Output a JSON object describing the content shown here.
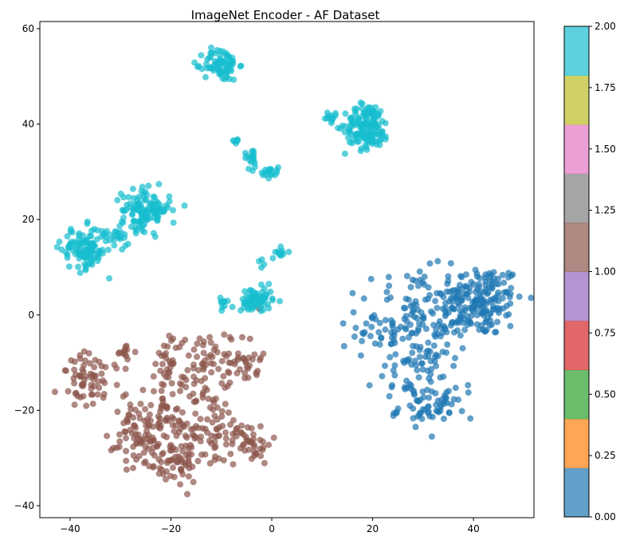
{
  "chart_data": {
    "type": "scatter",
    "title": "ImageNet Encoder - AF Dataset",
    "xlabel": "",
    "ylabel": "",
    "xlim": [
      -46,
      52
    ],
    "ylim": [
      -42.5,
      61.5
    ],
    "x_ticks": [
      -40,
      -20,
      0,
      20,
      40
    ],
    "y_ticks": [
      -40,
      -20,
      0,
      20,
      40,
      60
    ],
    "x_tick_labels": [
      "−40",
      "−20",
      "0",
      "20",
      "40"
    ],
    "y_tick_labels": [
      "−40",
      "−20",
      "0",
      "20",
      "40",
      "60"
    ],
    "grid": false,
    "marker_alpha": 0.7,
    "colormap": "tab10",
    "colorbar": {
      "range": [
        0.0,
        2.0
      ],
      "ticks": [
        0.0,
        0.25,
        0.5,
        0.75,
        1.0,
        1.25,
        1.5,
        1.75,
        2.0
      ],
      "tick_labels": [
        "0.00",
        "0.25",
        "0.50",
        "0.75",
        "1.00",
        "1.25",
        "1.50",
        "1.75",
        "2.00"
      ],
      "colors": [
        "#1f77b4",
        "#ff7f0e",
        "#2ca02c",
        "#d62728",
        "#9467bd",
        "#8c564b",
        "#7f7f7f",
        "#e377c2",
        "#bcbd22",
        "#17becf"
      ]
    },
    "series": [
      {
        "value": 0,
        "color": "#1f77b4",
        "clusters": [
          {
            "cx": 41,
            "cy": 3,
            "sx": 4.5,
            "sy": 3.8,
            "n": 190
          },
          {
            "cx": 28,
            "cy": -2,
            "sx": 5.5,
            "sy": 5.5,
            "n": 150
          },
          {
            "cx": 29,
            "cy": -14,
            "sx": 3,
            "sy": 4,
            "n": 60
          },
          {
            "cx": 31,
            "cy": -20,
            "sx": 3,
            "sy": 1.5,
            "n": 30
          },
          {
            "cx": 36,
            "cy": -18,
            "sx": 2,
            "sy": 1.5,
            "n": 12
          }
        ]
      },
      {
        "value": 1,
        "color": "#8c564b",
        "clusters": [
          {
            "cx": -36,
            "cy": -14,
            "sx": 3,
            "sy": 3,
            "n": 65
          },
          {
            "cx": -29,
            "cy": -8,
            "sx": 1,
            "sy": 1.2,
            "n": 12
          },
          {
            "cx": -24,
            "cy": -22,
            "sx": 3,
            "sy": 3,
            "n": 80
          },
          {
            "cx": -20,
            "cy": -10,
            "sx": 1.5,
            "sy": 3,
            "n": 30
          },
          {
            "cx": -13,
            "cy": -11,
            "sx": 3.5,
            "sy": 4,
            "n": 70
          },
          {
            "cx": -13,
            "cy": -24,
            "sx": 5,
            "sy": 4,
            "n": 90
          },
          {
            "cx": -20,
            "cy": -31,
            "sx": 3.5,
            "sy": 2.5,
            "n": 60
          },
          {
            "cx": -4,
            "cy": -27,
            "sx": 2,
            "sy": 2,
            "n": 35
          },
          {
            "cx": -5,
            "cy": -9,
            "sx": 1.5,
            "sy": 3,
            "n": 25
          },
          {
            "cx": -27,
            "cy": -28,
            "sx": 2.5,
            "sy": 2,
            "n": 25
          }
        ]
      },
      {
        "value": 2,
        "color": "#17becf",
        "clusters": [
          {
            "cx": -10,
            "cy": 52.5,
            "sx": 1.7,
            "sy": 1.7,
            "n": 80
          },
          {
            "cx": 19,
            "cy": 39.5,
            "sx": 2.2,
            "sy": 2.4,
            "n": 160
          },
          {
            "cx": 11.5,
            "cy": 41.3,
            "sx": 0.8,
            "sy": 0.5,
            "n": 12
          },
          {
            "cx": -7.3,
            "cy": 36.5,
            "sx": 0.5,
            "sy": 0.3,
            "n": 6
          },
          {
            "cx": -4,
            "cy": 33,
            "sx": 0.7,
            "sy": 1.2,
            "n": 18
          },
          {
            "cx": -0.5,
            "cy": 30,
            "sx": 0.9,
            "sy": 0.6,
            "n": 20
          },
          {
            "cx": -25,
            "cy": 22,
            "sx": 2.4,
            "sy": 2.1,
            "n": 130
          },
          {
            "cx": -37,
            "cy": 14,
            "sx": 2.3,
            "sy": 2.2,
            "n": 120
          },
          {
            "cx": -31,
            "cy": 16,
            "sx": 1.4,
            "sy": 1.0,
            "n": 18
          },
          {
            "cx": 2,
            "cy": 13,
            "sx": 0.6,
            "sy": 0.6,
            "n": 12
          },
          {
            "cx": -2,
            "cy": 11,
            "sx": 0.3,
            "sy": 0.5,
            "n": 4
          },
          {
            "cx": -3,
            "cy": 3,
            "sx": 1.6,
            "sy": 1.4,
            "n": 70
          },
          {
            "cx": -9,
            "cy": 3,
            "sx": 0.8,
            "sy": 0.8,
            "n": 10
          }
        ]
      }
    ]
  }
}
